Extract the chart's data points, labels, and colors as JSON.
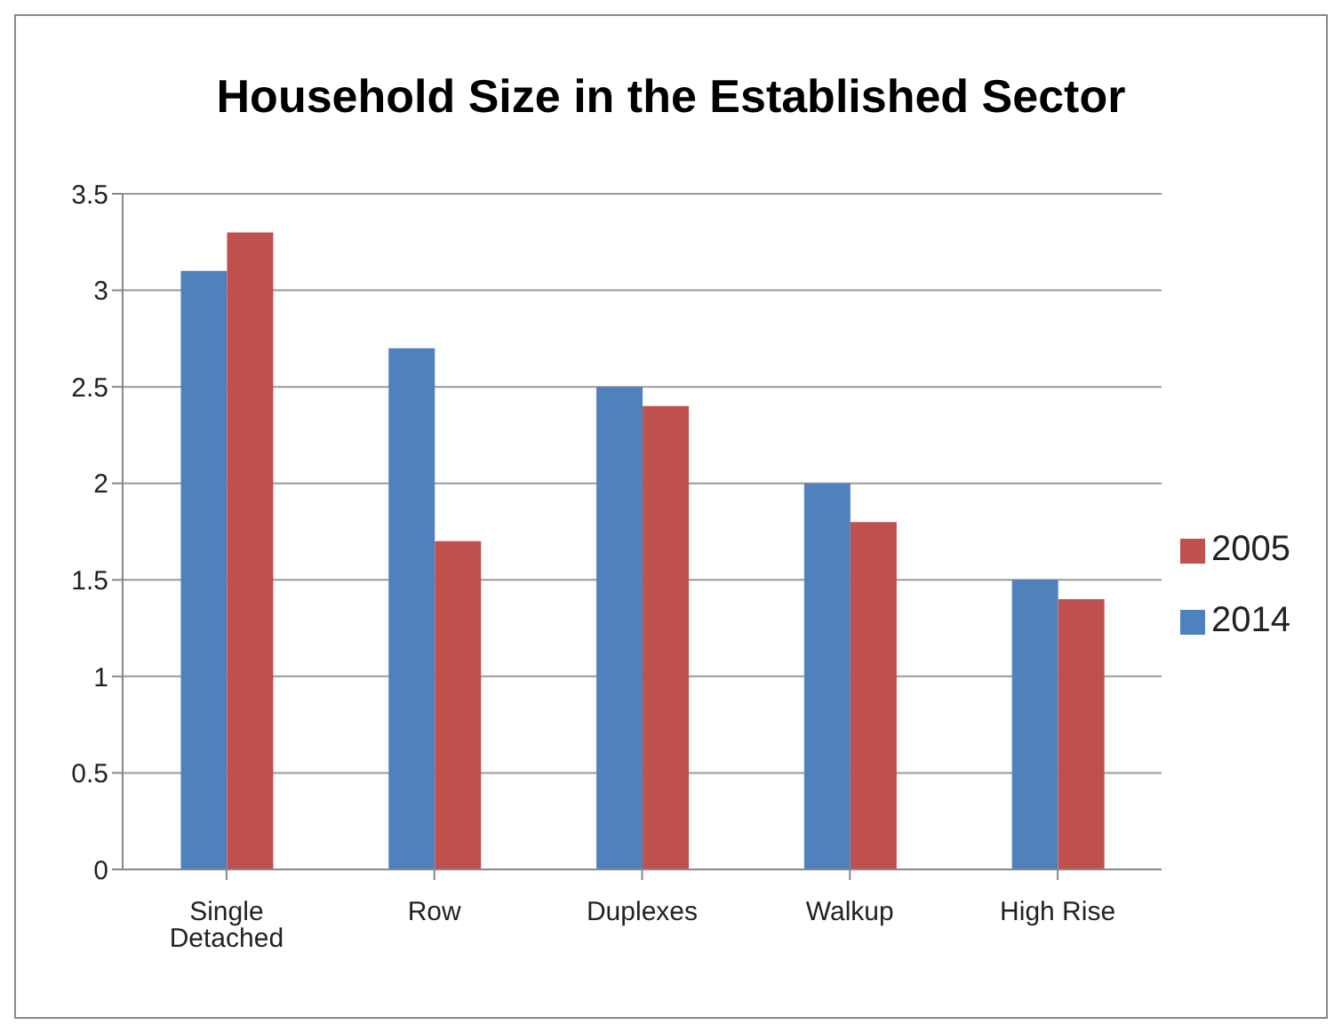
{
  "chart_data": {
    "type": "bar",
    "title": "Household Size in the Established Sector",
    "categories": [
      "Single Detached",
      "Row",
      "Duplexes",
      "Walkup",
      "High Rise"
    ],
    "series": [
      {
        "name": "2014",
        "color": "#4f81bd",
        "values": [
          3.1,
          2.7,
          2.5,
          2.0,
          1.5
        ]
      },
      {
        "name": "2005",
        "color": "#c0504d",
        "values": [
          3.3,
          1.7,
          2.4,
          1.8,
          1.4
        ]
      }
    ],
    "ylim": [
      0,
      3.5
    ],
    "yticks": [
      0,
      0.5,
      1,
      1.5,
      2,
      2.5,
      3,
      3.5
    ],
    "grid": "y",
    "legend": "right"
  }
}
